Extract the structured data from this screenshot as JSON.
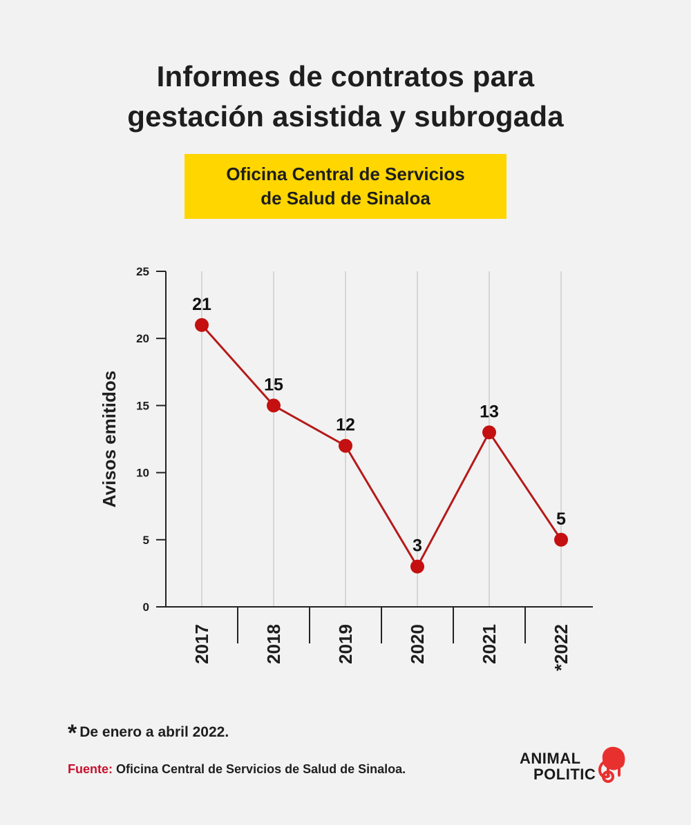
{
  "title": {
    "line1": "Informes de contratos para",
    "line2": "gestación asistida y subrogada"
  },
  "subtitle": {
    "line1": "Oficina Central de Servicios",
    "line2": "de Salud de Sinaloa"
  },
  "chart_data": {
    "type": "line",
    "categories": [
      "2017",
      "2018",
      "2019",
      "2020",
      "2021",
      "*2022"
    ],
    "values": [
      21,
      15,
      12,
      3,
      13,
      5
    ],
    "data_labels": [
      "21",
      "15",
      "12",
      "3",
      "13",
      "5"
    ],
    "ylabel": "Avisos emitidos",
    "xlabel": "",
    "ylim": [
      0,
      25
    ],
    "yticks": [
      "0",
      "5",
      "10",
      "15",
      "20",
      "25"
    ],
    "grid": "vertical",
    "line_color": "#b51a1a",
    "marker_color": "#c41010"
  },
  "footnote": {
    "mark": "*",
    "text": "De enero a abril 2022."
  },
  "source": {
    "label": "Fuente:",
    "text": "Oficina Central de Servicios de Salud de Sinaloa."
  },
  "logo": {
    "line1": "ANIMAL",
    "line2": "POLITIC",
    "icon": "elephant-icon",
    "accent": "#e8312f"
  }
}
